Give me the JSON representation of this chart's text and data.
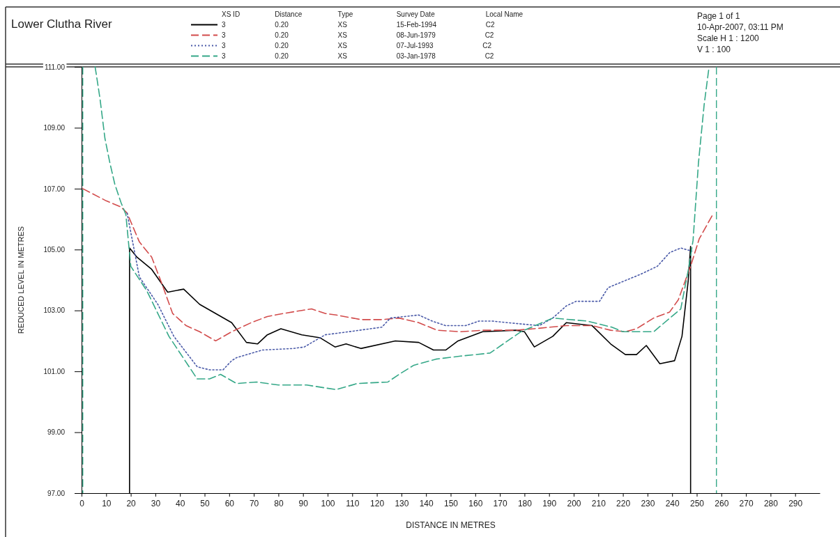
{
  "chart_data": {
    "type": "line",
    "title": "Lower Clutha River",
    "xlabel": "DISTANCE IN METRES",
    "ylabel": "REDUCED LEVEL IN METRES",
    "legend_title": "XS ID  Distance  Type  Survey Date  Local Name",
    "legend": "top",
    "annotations": [
      "Page 1 of 1",
      "10-Apr-2007, 03:11 PM",
      "Scale H 1 : 1200",
      "V 1 : 100"
    ],
    "xlim": [
      0,
      300
    ],
    "xticks": [
      0,
      10,
      20,
      30,
      40,
      50,
      60,
      70,
      80,
      90,
      100,
      110,
      120,
      130,
      140,
      150,
      160,
      170,
      180,
      190,
      200,
      210,
      220,
      230,
      240,
      250,
      260,
      270,
      280,
      290
    ],
    "ylim": [
      97,
      111
    ],
    "yticks": [
      {
        "value": 97,
        "label": "97.00"
      },
      {
        "value": 99,
        "label": "99.00"
      },
      {
        "value": 101,
        "label": "101.00"
      },
      {
        "value": 103,
        "label": "103.00"
      },
      {
        "value": 105,
        "label": "105.00"
      },
      {
        "value": 107,
        "label": "107.00"
      },
      {
        "value": 109,
        "label": "109.00"
      },
      {
        "value": 111,
        "label": "111.00"
      }
    ],
    "ref_lines": [
      {
        "axis": "x",
        "value": 0.5,
        "color": "#35a888",
        "line_style": "dashed"
      },
      {
        "axis": "x",
        "value": 258,
        "color": "#35a888",
        "line_style": "dashed"
      }
    ],
    "series": [
      {
        "name": "3 0.20 XS 15-Feb-1994 C2",
        "color": "#000000",
        "line_style": "solid",
        "x": [
          19.5,
          19.5,
          22.5,
          28.5,
          35,
          41.5,
          48,
          61,
          67,
          71.5,
          75.5,
          81,
          89.5,
          97,
          103,
          107.5,
          113.5,
          127.5,
          137,
          143,
          148,
          153,
          163,
          176.5,
          180,
          184,
          191.5,
          197,
          207.5,
          215,
          221,
          225.5,
          229.5,
          235,
          241,
          244,
          246.5,
          247.5,
          247.5
        ],
        "values": [
          97,
          105.05,
          104.75,
          104.35,
          103.6,
          103.7,
          103.2,
          102.6,
          101.95,
          101.9,
          102.2,
          102.4,
          102.2,
          102.1,
          101.8,
          101.9,
          101.75,
          102,
          101.95,
          101.7,
          101.7,
          102,
          102.3,
          102.35,
          102.3,
          101.8,
          102.15,
          102.6,
          102.5,
          101.9,
          101.55,
          101.55,
          101.85,
          101.25,
          101.35,
          102.15,
          103.95,
          105.1,
          97
        ]
      },
      {
        "name": "3 0.20 XS 08-Jun-1979 C2",
        "color": "#d24b4b",
        "line_style": "dashed",
        "x": [
          0.5,
          10,
          16,
          18.5,
          23.5,
          28.5,
          33,
          37,
          42.5,
          48,
          54.5,
          61,
          69,
          75.5,
          82,
          89.5,
          93.5,
          99,
          103.5,
          113.5,
          122.5,
          129,
          137,
          144.5,
          154,
          163,
          176.5,
          184,
          197,
          207.5,
          215,
          221,
          225.5,
          232.5,
          239,
          242.5,
          247.5,
          251,
          256.5
        ],
        "values": [
          107,
          106.6,
          106.4,
          106.2,
          105.25,
          104.75,
          103.8,
          102.9,
          102.5,
          102.3,
          102,
          102.3,
          102.6,
          102.8,
          102.9,
          103,
          103.05,
          102.9,
          102.85,
          102.7,
          102.7,
          102.75,
          102.6,
          102.35,
          102.3,
          102.35,
          102.35,
          102.4,
          102.5,
          102.5,
          102.35,
          102.3,
          102.4,
          102.75,
          102.95,
          103.35,
          104.45,
          105.35,
          106.15
        ]
      },
      {
        "name": "3 0.20 XS 07-Jul-1993 C2",
        "color": "#4a5aa8",
        "line_style": "dotted",
        "x": [
          18.5,
          23.5,
          31,
          37.5,
          47,
          52,
          57.5,
          61,
          63,
          73.5,
          86,
          90.5,
          99,
          108.5,
          122,
          125.5,
          137,
          142.5,
          148,
          156,
          161.5,
          167,
          173,
          186,
          191.5,
          197,
          201,
          210.5,
          214,
          220,
          227.5,
          234,
          239,
          243.5,
          248
        ],
        "values": [
          106.2,
          104.1,
          103.2,
          102.15,
          101.15,
          101.05,
          101.05,
          101.35,
          101.45,
          101.7,
          101.75,
          101.8,
          102.2,
          102.3,
          102.45,
          102.75,
          102.85,
          102.65,
          102.5,
          102.5,
          102.65,
          102.65,
          102.6,
          102.5,
          102.75,
          103.15,
          103.3,
          103.3,
          103.75,
          103.95,
          104.2,
          104.45,
          104.9,
          105.05,
          104.95
        ]
      },
      {
        "name": "3 0.20 XS 03-Jan-1978 C2",
        "color": "#35a888",
        "line_style": "dashed",
        "x": [
          5.5,
          6,
          7.5,
          9.5,
          11.5,
          13.5,
          16,
          18,
          20,
          26.5,
          35.5,
          47,
          52,
          56.5,
          63,
          71,
          80,
          91.5,
          103.5,
          112,
          124.5,
          129,
          135,
          144,
          154,
          166,
          178.5,
          191.5,
          205.5,
          215.5,
          220,
          232.5,
          243.5,
          246.5,
          248.5,
          250.7,
          253,
          254.2,
          255
        ],
        "values": [
          111,
          110.75,
          109.95,
          108.65,
          107.85,
          107.15,
          106.55,
          106.15,
          104.45,
          103.65,
          102.15,
          100.75,
          100.75,
          100.9,
          100.6,
          100.65,
          100.55,
          100.55,
          100.4,
          100.6,
          100.65,
          100.9,
          101.2,
          101.4,
          101.5,
          101.6,
          102.3,
          102.75,
          102.65,
          102.45,
          102.3,
          102.3,
          103.05,
          104.3,
          105.3,
          107.85,
          109.75,
          110.5,
          111
        ]
      }
    ]
  }
}
